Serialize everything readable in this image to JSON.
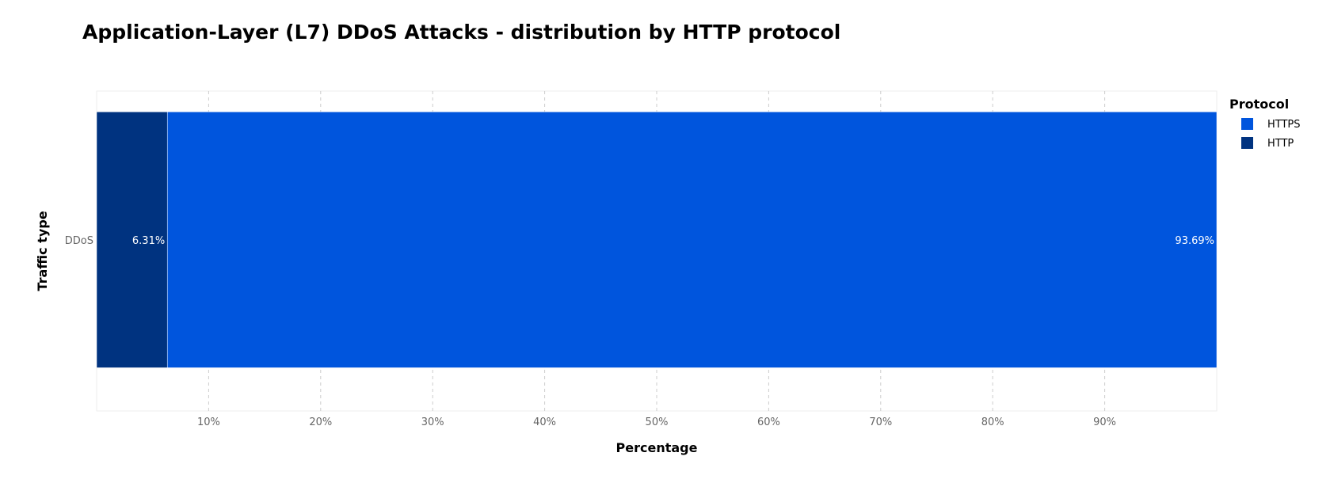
{
  "chart_data": {
    "type": "bar",
    "orientation": "horizontal",
    "stacked": true,
    "title": "Application-Layer (L7) DDoS Attacks - distribution by HTTP protocol",
    "xlabel": "Percentage",
    "ylabel": "Traffic type",
    "categories": [
      "DDoS"
    ],
    "x_ticks": [
      "10%",
      "20%",
      "30%",
      "40%",
      "50%",
      "60%",
      "70%",
      "80%",
      "90%"
    ],
    "xlim": [
      0,
      100
    ],
    "grid": "vertical-dashed",
    "legend_title": "Protocol",
    "legend_position": "right",
    "series": [
      {
        "name": "HTTP",
        "values": [
          6.31
        ],
        "label": "6.31%",
        "color": "#003380"
      },
      {
        "name": "HTTPS",
        "values": [
          93.69
        ],
        "label": "93.69%",
        "color": "#0055dd"
      }
    ],
    "legend_items": [
      {
        "label": "HTTPS",
        "color": "#0055dd"
      },
      {
        "label": "HTTP",
        "color": "#003380"
      }
    ]
  }
}
